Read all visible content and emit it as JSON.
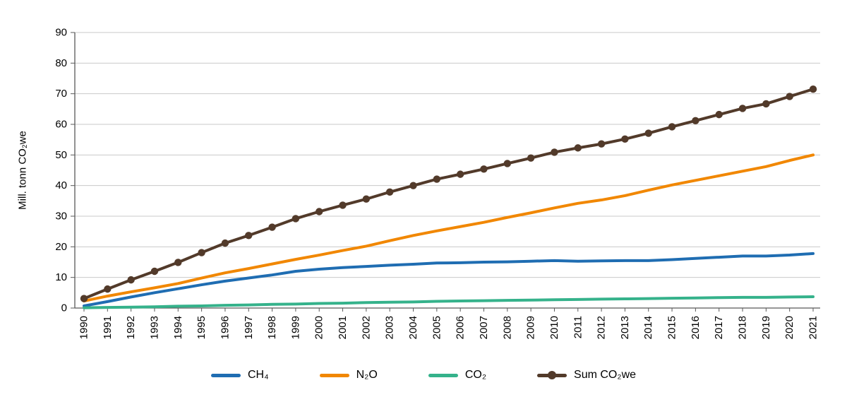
{
  "chart_data": {
    "type": "line",
    "title": "",
    "xlabel": "",
    "ylabel": "Mill. tonn CO₂we",
    "ylim": [
      0,
      90
    ],
    "ytick_step": 10,
    "grid": true,
    "legend_position": "bottom",
    "axis_color": "#595959",
    "grid_color": "#c9c9c9",
    "tick_color": "#000000",
    "categories": [
      "1990",
      "1991",
      "1992",
      "1993",
      "1994",
      "1995",
      "1996",
      "1997",
      "1998",
      "1999",
      "2000",
      "2001",
      "2002",
      "2003",
      "2004",
      "2005",
      "2006",
      "2007",
      "2008",
      "2009",
      "2010",
      "2011",
      "2012",
      "2013",
      "2014",
      "2015",
      "2016",
      "2017",
      "2018",
      "2019",
      "2020",
      "2021"
    ],
    "series": [
      {
        "name": "CH₄",
        "color": "#1f6db2",
        "width": 4,
        "markers": false,
        "values": [
          0.7,
          2.1,
          3.6,
          5.0,
          6.3,
          7.6,
          8.8,
          9.8,
          10.8,
          12.0,
          12.7,
          13.2,
          13.6,
          14.0,
          14.3,
          14.7,
          14.8,
          15.0,
          15.1,
          15.3,
          15.5,
          15.3,
          15.4,
          15.5,
          15.5,
          15.8,
          16.2,
          16.6,
          17.0,
          17.0,
          17.3,
          17.8
        ]
      },
      {
        "name": "N₂O",
        "color": "#f18700",
        "width": 4,
        "markers": false,
        "values": [
          2.3,
          3.9,
          5.3,
          6.6,
          8.0,
          9.8,
          11.5,
          12.9,
          14.4,
          15.9,
          17.3,
          18.8,
          20.2,
          22.0,
          23.7,
          25.2,
          26.6,
          28.0,
          29.6,
          31.1,
          32.7,
          34.2,
          35.3,
          36.7,
          38.5,
          40.2,
          41.7,
          43.2,
          44.7,
          46.2,
          48.2,
          50.0
        ]
      },
      {
        "name": "CO₂",
        "color": "#35b28b",
        "width": 4,
        "markers": false,
        "values": [
          0.1,
          0.2,
          0.3,
          0.4,
          0.6,
          0.7,
          0.9,
          1.0,
          1.2,
          1.3,
          1.5,
          1.6,
          1.8,
          1.9,
          2.0,
          2.2,
          2.3,
          2.4,
          2.5,
          2.6,
          2.7,
          2.8,
          2.9,
          3.0,
          3.1,
          3.2,
          3.3,
          3.4,
          3.5,
          3.5,
          3.6,
          3.7
        ]
      },
      {
        "name": "Sum CO₂we",
        "color": "#523a2a",
        "width": 4,
        "markers": true,
        "values": [
          3.1,
          6.2,
          9.2,
          12.0,
          14.9,
          18.1,
          21.2,
          23.7,
          26.4,
          29.2,
          31.5,
          33.6,
          35.6,
          37.9,
          40.0,
          42.1,
          43.7,
          45.4,
          47.2,
          49.0,
          50.9,
          52.3,
          53.6,
          55.2,
          57.1,
          59.2,
          61.2,
          63.2,
          65.2,
          66.7,
          69.1,
          71.5
        ]
      }
    ]
  }
}
